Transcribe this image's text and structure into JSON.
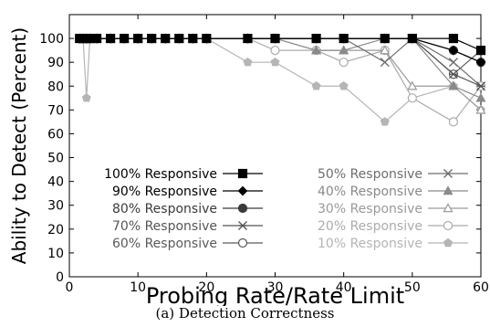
{
  "caption": "(a) Detection Correctness",
  "chart_data": {
    "type": "line",
    "xlabel": "Probing Rate/Rate Limit",
    "ylabel": "Ability to Detect (Percent)",
    "xlim": [
      0,
      60
    ],
    "ylim": [
      0,
      110
    ],
    "xticks": [
      0,
      10,
      20,
      30,
      40,
      50,
      60
    ],
    "yticks": [
      0,
      10,
      20,
      30,
      40,
      50,
      60,
      70,
      80,
      90,
      100
    ],
    "grid": false,
    "legend_position": "bottom-center, two columns",
    "x": [
      1.5,
      2,
      2.5,
      3,
      4,
      6,
      8,
      10,
      12,
      14,
      16,
      18,
      20,
      26,
      30,
      36,
      40,
      46,
      50,
      56,
      60
    ],
    "series": [
      {
        "name": "100% Responsive",
        "color": "#000000",
        "marker": "square-filled",
        "values": [
          100,
          100,
          100,
          100,
          100,
          100,
          100,
          100,
          100,
          100,
          100,
          100,
          100,
          100,
          100,
          100,
          100,
          100,
          100,
          100,
          95
        ]
      },
      {
        "name": "90% Responsive",
        "color": "#000000",
        "marker": "diamond-filled",
        "values": [
          100,
          100,
          100,
          100,
          100,
          100,
          100,
          100,
          100,
          100,
          100,
          100,
          100,
          100,
          100,
          100,
          100,
          100,
          100,
          95,
          90
        ]
      },
      {
        "name": "80% Responsive",
        "color": "#3a3a3a",
        "marker": "circle-filled",
        "values": [
          100,
          100,
          100,
          100,
          100,
          100,
          100,
          100,
          100,
          100,
          100,
          100,
          100,
          100,
          100,
          100,
          100,
          100,
          100,
          95,
          90
        ]
      },
      {
        "name": "70% Responsive",
        "color": "#555555",
        "marker": "asterisk",
        "values": [
          100,
          100,
          100,
          100,
          100,
          100,
          100,
          100,
          100,
          100,
          100,
          100,
          100,
          100,
          100,
          100,
          100,
          100,
          100,
          85,
          80
        ]
      },
      {
        "name": "60% Responsive",
        "color": "#5a5a5a",
        "marker": "circle-open",
        "values": [
          100,
          100,
          100,
          100,
          100,
          100,
          100,
          100,
          100,
          100,
          100,
          100,
          100,
          100,
          100,
          100,
          100,
          100,
          100,
          85,
          95
        ]
      },
      {
        "name": "50% Responsive",
        "color": "#6e6e6e",
        "marker": "x",
        "values": [
          100,
          100,
          100,
          100,
          100,
          100,
          100,
          100,
          100,
          100,
          100,
          100,
          100,
          100,
          100,
          100,
          100,
          90,
          100,
          90,
          80
        ]
      },
      {
        "name": "40% Responsive",
        "color": "#8a8a8a",
        "marker": "triangle-filled",
        "values": [
          100,
          100,
          100,
          100,
          100,
          100,
          100,
          100,
          100,
          100,
          100,
          100,
          100,
          100,
          100,
          95,
          95,
          100,
          100,
          80,
          75
        ]
      },
      {
        "name": "30% Responsive",
        "color": "#9a9a9a",
        "marker": "triangle-open",
        "values": [
          100,
          100,
          100,
          100,
          100,
          100,
          100,
          100,
          100,
          100,
          100,
          100,
          100,
          100,
          100,
          95,
          95,
          95,
          80,
          80,
          70
        ]
      },
      {
        "name": "20% Responsive",
        "color": "#ababab",
        "marker": "circle-open",
        "values": [
          100,
          100,
          100,
          100,
          100,
          100,
          100,
          100,
          100,
          100,
          100,
          100,
          100,
          100,
          95,
          95,
          90,
          95,
          75,
          65,
          80
        ]
      },
      {
        "name": "10% Responsive",
        "color": "#b5b5b5",
        "marker": "pentagon-filled",
        "values": [
          100,
          100,
          75,
          100,
          100,
          100,
          100,
          100,
          100,
          100,
          100,
          100,
          100,
          90,
          90,
          80,
          80,
          65,
          75,
          80,
          70
        ]
      }
    ]
  }
}
